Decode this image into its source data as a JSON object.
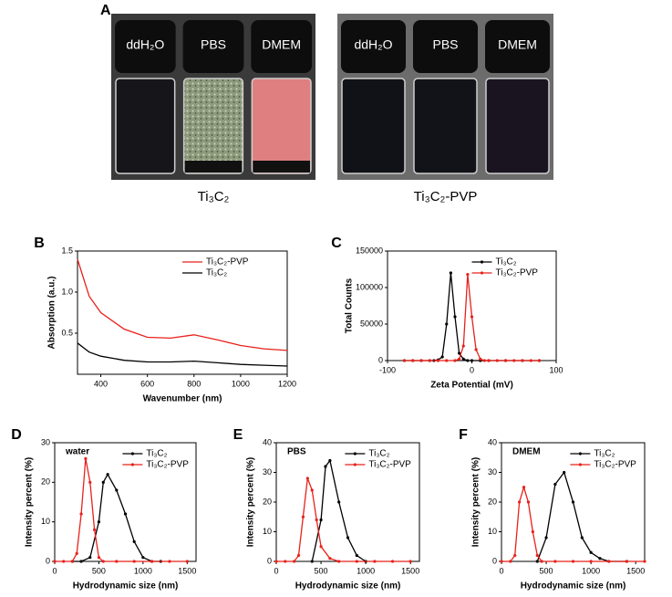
{
  "panel_a": {
    "panel": "A",
    "groups": [
      {
        "caption": "Ti₃C₂",
        "vials": [
          "ddH₂O",
          "PBS",
          "DMEM"
        ]
      },
      {
        "caption": "Ti₃C₂-PVP",
        "vials": [
          "ddH₂O",
          "PBS",
          "DMEM"
        ]
      }
    ]
  },
  "chart_data": [
    {
      "type": "line",
      "panel": "B",
      "xlabel": "Wavenumber (nm)",
      "ylabel": "Absorption (a.u.)",
      "xlim": [
        300,
        1200
      ],
      "xticks": [
        400,
        600,
        800,
        1000,
        1200
      ],
      "ylim": [
        0,
        1.5
      ],
      "yticks": [
        0.5,
        {
          "value": 1,
          "label": "1.0"
        },
        1.5
      ],
      "legend": "upper-right",
      "marker": false,
      "series": [
        {
          "name": "Ti₃C₂-PVP",
          "color": "#e8211b",
          "x": [
            300,
            350,
            400,
            500,
            600,
            700,
            800,
            900,
            1000,
            1100,
            1200
          ],
          "values": [
            1.4,
            0.95,
            0.75,
            0.55,
            0.45,
            0.44,
            0.48,
            0.42,
            0.35,
            0.31,
            0.29
          ]
        },
        {
          "name": "Ti₃C₂",
          "color": "#000000",
          "x": [
            300,
            350,
            400,
            500,
            600,
            700,
            800,
            900,
            1000,
            1100,
            1200
          ],
          "values": [
            0.38,
            0.27,
            0.22,
            0.17,
            0.15,
            0.15,
            0.16,
            0.14,
            0.12,
            0.11,
            0.1
          ]
        }
      ]
    },
    {
      "type": "line",
      "panel": "C",
      "xlabel": "Zeta Potential (mV)",
      "ylabel": "Total Counts",
      "xlim": [
        -100,
        100
      ],
      "xticks": [
        -100,
        0,
        100
      ],
      "ylim": [
        0,
        150000
      ],
      "yticks": [
        0,
        50000,
        100000,
        150000
      ],
      "legend": "upper-right",
      "marker": true,
      "series": [
        {
          "name": "Ti₃C₂",
          "color": "#000000",
          "x": [
            -80,
            -70,
            -60,
            -50,
            -45,
            -40,
            -35,
            -30,
            -25,
            -20,
            -15,
            -10,
            -5,
            0,
            10,
            20,
            40,
            60,
            80
          ],
          "values": [
            0,
            0,
            0,
            0,
            0,
            1000,
            5000,
            50000,
            120000,
            60000,
            10000,
            2000,
            0,
            0,
            0,
            0,
            0,
            0,
            0
          ]
        },
        {
          "name": "Ti₃C₂-PVP",
          "color": "#e8211b",
          "x": [
            -80,
            -70,
            -60,
            -50,
            -40,
            -30,
            -20,
            -15,
            -10,
            -5,
            0,
            5,
            10,
            15,
            20,
            30,
            40,
            50,
            60,
            70,
            80
          ],
          "values": [
            0,
            0,
            0,
            0,
            0,
            0,
            0,
            2000,
            20000,
            118000,
            60000,
            15000,
            2000,
            0,
            0,
            0,
            0,
            0,
            0,
            0,
            0
          ]
        }
      ]
    },
    {
      "type": "line",
      "panel": "D",
      "title": "water",
      "xlabel": "Hydrodynamic size (nm)",
      "ylabel": "Intensity percent (%)",
      "xlim": [
        0,
        1600
      ],
      "xticks": [
        0,
        500,
        1000,
        1500
      ],
      "ylim": [
        0,
        30
      ],
      "yticks": [
        0,
        10,
        20,
        30
      ],
      "legend": "right",
      "marker": true,
      "series": [
        {
          "name": "Ti₃C₂",
          "color": "#000000",
          "x": [
            200,
            300,
            400,
            500,
            550,
            600,
            700,
            800,
            900,
            1000,
            1100,
            1200
          ],
          "values": [
            0,
            0,
            1,
            10,
            20,
            22,
            18,
            12,
            5,
            1,
            0,
            0
          ]
        },
        {
          "name": "Ti₃C₂-PVP",
          "color": "#e8211b",
          "x": [
            0,
            100,
            200,
            250,
            300,
            350,
            400,
            450,
            500,
            550,
            700,
            900,
            1100,
            1300,
            1500
          ],
          "values": [
            0,
            0,
            0,
            2,
            12,
            26,
            20,
            8,
            1,
            0,
            0,
            0,
            0,
            0,
            0
          ]
        }
      ]
    },
    {
      "type": "line",
      "panel": "E",
      "title": "PBS",
      "xlabel": "Hydrodynamic size (nm)",
      "ylabel": "Intensity percent (%)",
      "xlim": [
        0,
        1600
      ],
      "xticks": [
        0,
        500,
        1000,
        1500
      ],
      "ylim": [
        0,
        40
      ],
      "yticks": [
        0,
        10,
        20,
        30,
        40
      ],
      "legend": "right",
      "marker": true,
      "series": [
        {
          "name": "Ti₃C₂",
          "color": "#000000",
          "x": [
            400,
            500,
            550,
            600,
            700,
            800,
            900,
            1000
          ],
          "values": [
            0,
            14,
            32,
            34,
            20,
            8,
            2,
            0
          ]
        },
        {
          "name": "Ti₃C₂-PVP",
          "color": "#e8211b",
          "x": [
            0,
            100,
            200,
            250,
            300,
            350,
            400,
            450,
            500,
            600,
            700,
            900,
            1100,
            1300,
            1500
          ],
          "values": [
            0,
            0,
            0,
            2,
            15,
            28,
            24,
            14,
            5,
            1,
            0,
            0,
            0,
            0,
            0
          ]
        }
      ]
    },
    {
      "type": "line",
      "panel": "F",
      "title": "DMEM",
      "xlabel": "Hydrodynamic size (nm)",
      "ylabel": "Intensity percent (%)",
      "xlim": [
        0,
        1600
      ],
      "xticks": [
        0,
        500,
        1000,
        1500
      ],
      "ylim": [
        0,
        40
      ],
      "yticks": [
        0,
        10,
        20,
        30,
        40
      ],
      "legend": "right",
      "marker": true,
      "series": [
        {
          "name": "Ti₃C₂",
          "color": "#000000",
          "x": [
            400,
            500,
            600,
            700,
            800,
            900,
            1000,
            1100,
            1200,
            1400
          ],
          "values": [
            0,
            8,
            26,
            30,
            20,
            8,
            3,
            1,
            0,
            0
          ]
        },
        {
          "name": "Ti₃C₂-PVP",
          "color": "#e8211b",
          "x": [
            0,
            100,
            150,
            200,
            250,
            300,
            350,
            400,
            450,
            600,
            800,
            1000,
            1200,
            1400,
            1600
          ],
          "values": [
            0,
            0,
            2,
            20,
            25,
            20,
            10,
            2,
            0,
            0,
            0,
            0,
            0,
            0,
            0
          ]
        }
      ]
    }
  ]
}
